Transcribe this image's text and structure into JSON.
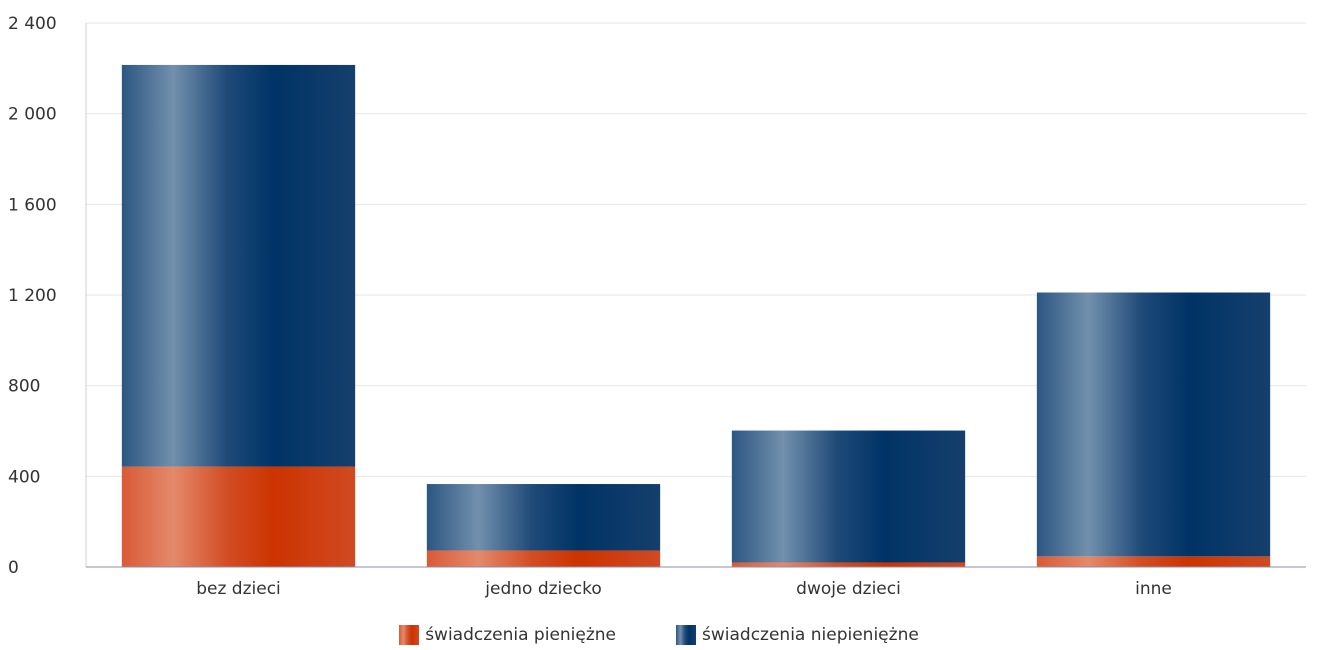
{
  "chart_data": {
    "type": "bar",
    "stacked": true,
    "categories": [
      "bez dzieci",
      "jedno dziecko",
      "dwoje dzieci",
      "inne"
    ],
    "series": [
      {
        "name": "świadczenia pieniężne",
        "values": [
          443,
          73,
          20,
          47
        ],
        "color": "#d63a0a"
      },
      {
        "name": "świadczenia niepieniężne",
        "values": [
          1772,
          293,
          582,
          1164
        ],
        "color": "#003366"
      }
    ],
    "ylim": [
      0,
      2400
    ],
    "yticks": [
      "0",
      "400",
      "800",
      "1 200",
      "1 600",
      "2 000",
      "2 400"
    ],
    "title": "",
    "xlabel": "",
    "ylabel": "",
    "grid": true,
    "legend_position": "bottom"
  }
}
